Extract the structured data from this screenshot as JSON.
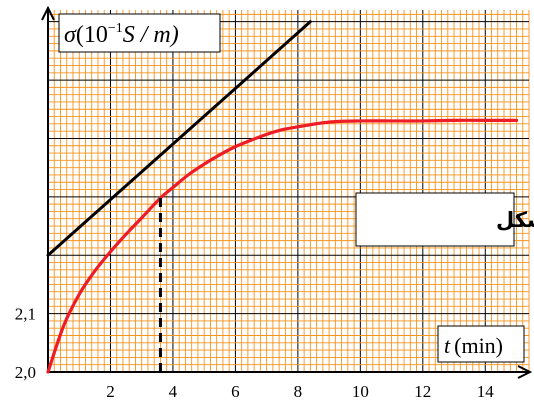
{
  "chart_data": {
    "type": "line",
    "x_label_var": "t",
    "x_label_unit": "(min)",
    "y_label_sym": "σ",
    "y_label_unit_pre": "(10",
    "y_label_exp": "−1",
    "y_label_unit_post": "S / m)",
    "caption": "الشكل",
    "xlim": [
      0,
      15.4
    ],
    "ylim": [
      2.0,
      2.62
    ],
    "x_ticks": [
      2,
      4,
      6,
      8,
      10,
      12,
      14
    ],
    "x_tick_labels": [
      "2",
      "4",
      "6",
      "8",
      "10",
      "12",
      "14"
    ],
    "y_ticks": [
      2.0,
      2.1
    ],
    "y_tick_labels": [
      "2,0",
      "2,1"
    ],
    "grid": true,
    "series": [
      {
        "color": "#ee1c24",
        "x": [
          0,
          0.5,
          1,
          1.5,
          2,
          2.5,
          3,
          3.6,
          4,
          4.5,
          5,
          5.5,
          6,
          6.5,
          7,
          7.5,
          8,
          9,
          10,
          11,
          12,
          13,
          14,
          15
        ],
        "y": [
          2.0,
          2.079,
          2.133,
          2.173,
          2.206,
          2.236,
          2.264,
          2.298,
          2.316,
          2.338,
          2.356,
          2.372,
          2.386,
          2.397,
          2.407,
          2.415,
          2.42,
          2.428,
          2.43,
          2.43,
          2.43,
          2.431,
          2.431,
          2.431
        ]
      },
      {
        "color": "#000000",
        "x": [
          0,
          8.4
        ],
        "y": [
          2.2,
          2.6
        ]
      }
    ],
    "marker_x": 3.6,
    "marker_y": 2.298
  }
}
